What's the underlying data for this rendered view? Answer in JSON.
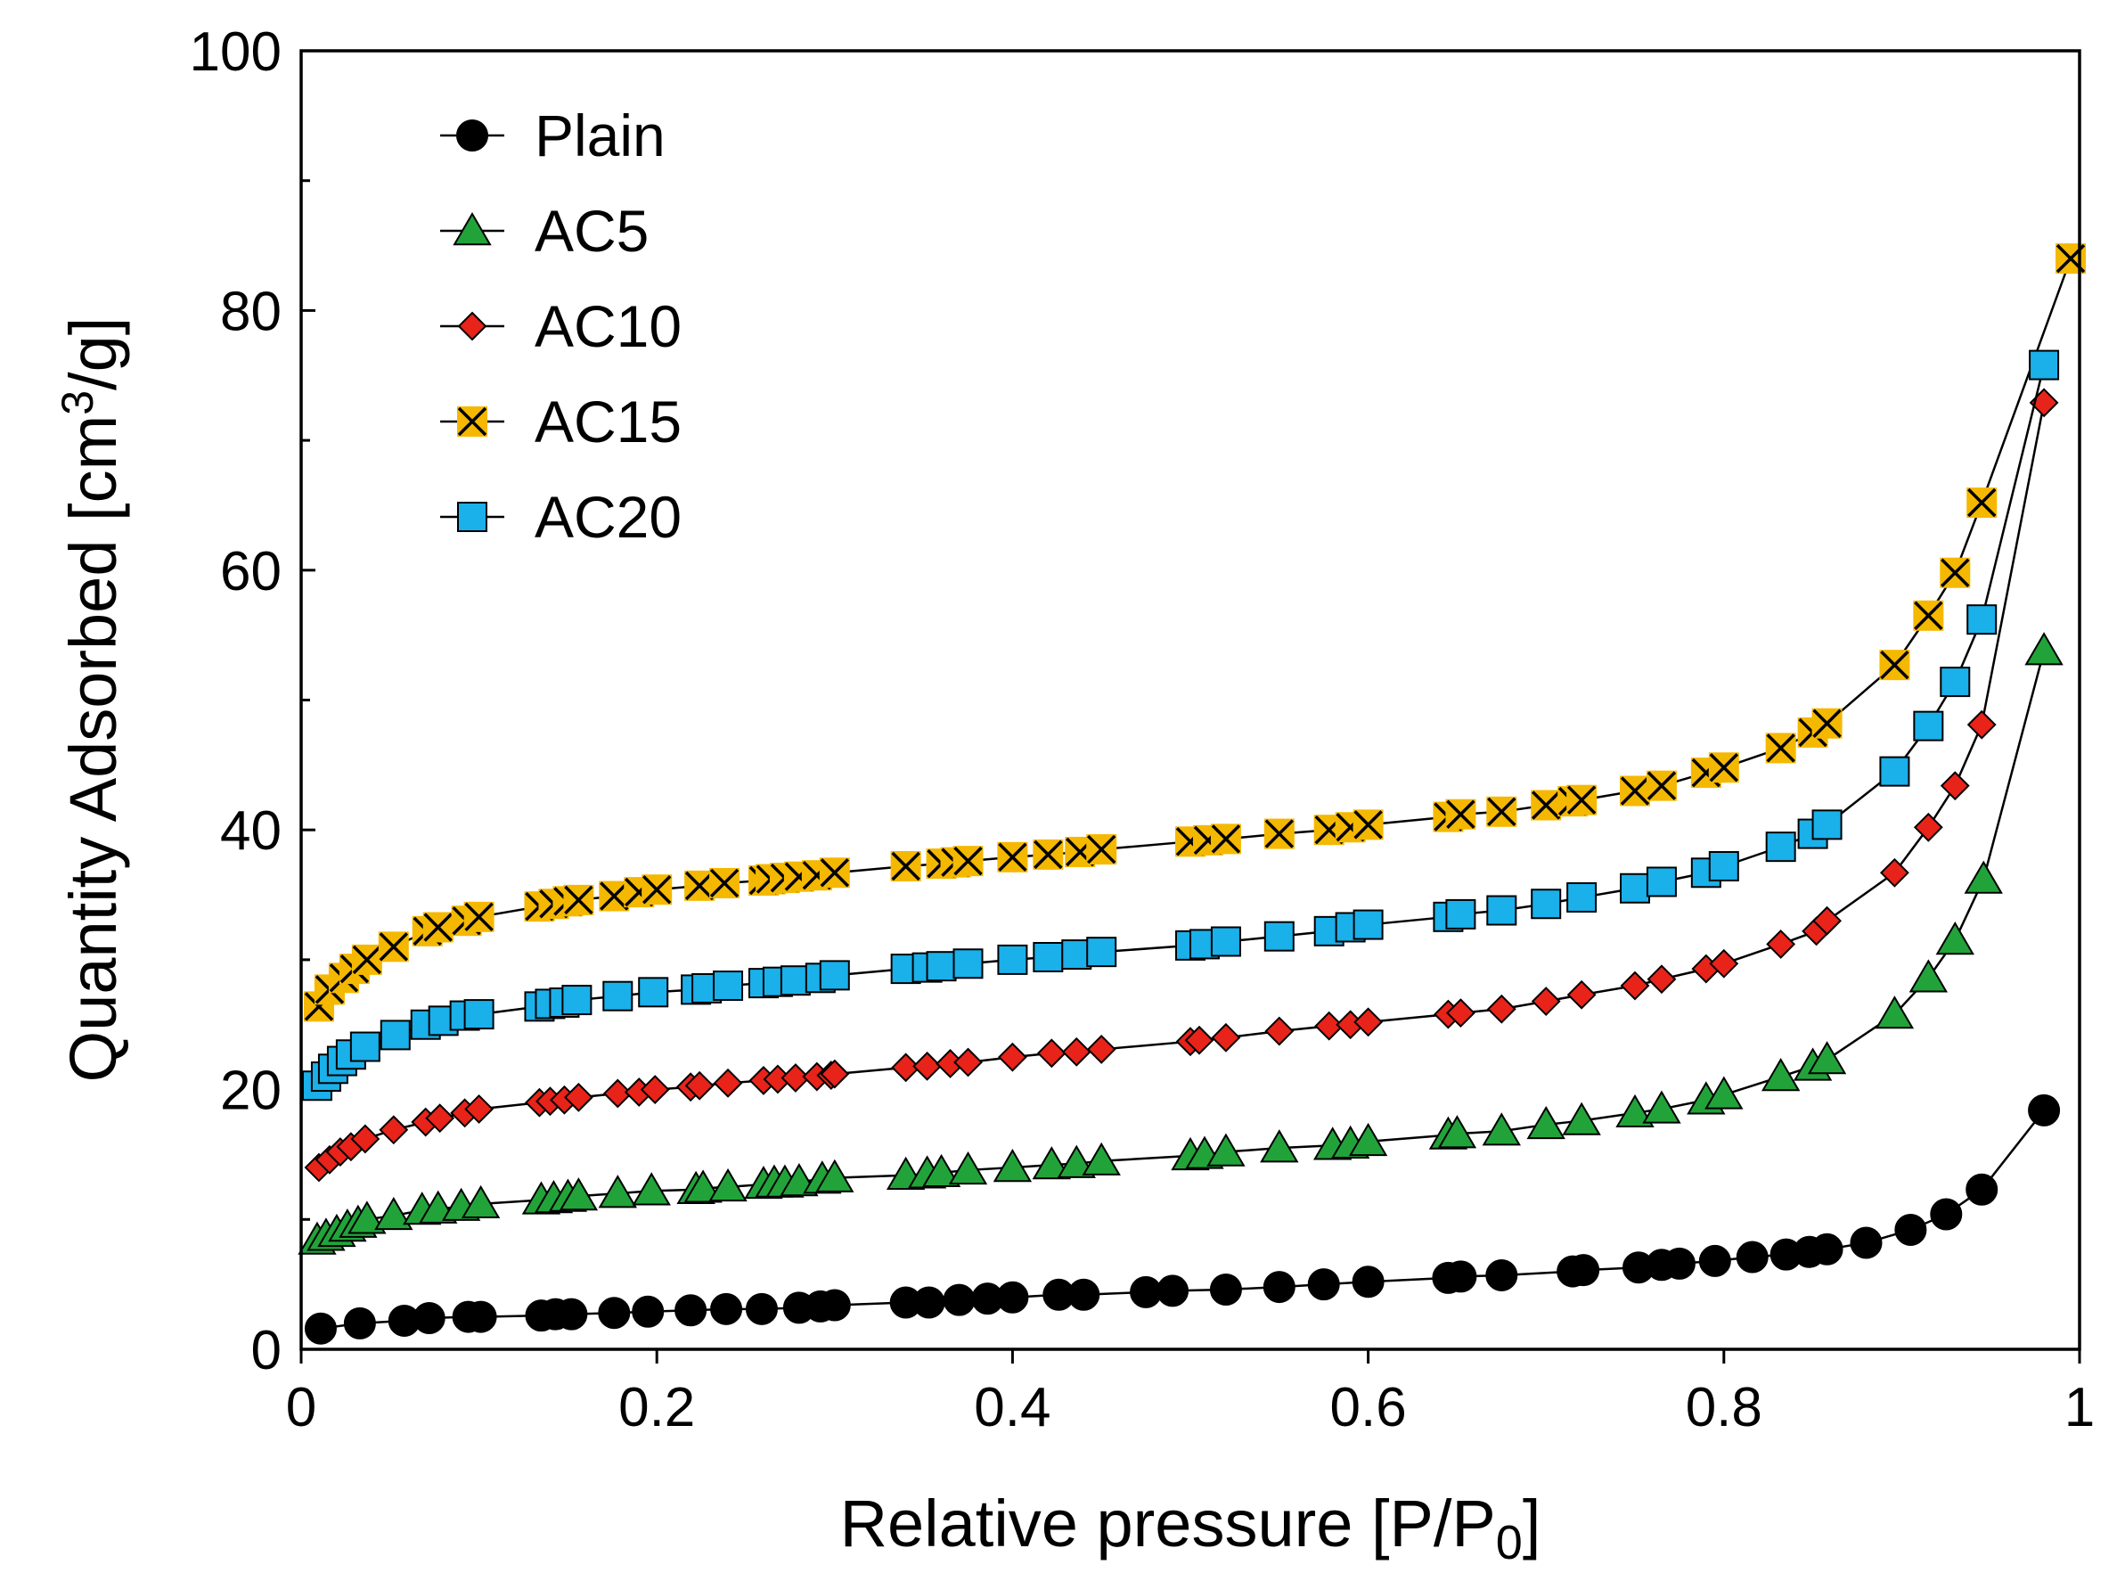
{
  "chart_data": {
    "type": "line",
    "title": "",
    "xlabel": "Relative pressure [P/P0]",
    "xlabel_parts": [
      "Relative pressure [P/P",
      "0",
      "]"
    ],
    "ylabel": "Quantity Adsorbed [cm3/g]",
    "ylabel_parts": [
      "Quantity Adsorbed [cm",
      "3",
      "/g]"
    ],
    "xlim": [
      0,
      1
    ],
    "ylim": [
      0,
      100
    ],
    "xticks": [
      0,
      0.2,
      0.4,
      0.6,
      0.8,
      1
    ],
    "xtick_labels": [
      "0",
      "0.2",
      "0.4",
      "0.6",
      "0.8",
      "1"
    ],
    "yticks": [
      0,
      20,
      40,
      60,
      80,
      100
    ],
    "ytick_labels": [
      "0",
      "20",
      "40",
      "60",
      "80",
      "100"
    ],
    "y_minor_step": 10,
    "grid": false,
    "legend_position": "top-left",
    "series": [
      {
        "name": "Plain",
        "marker": "circle",
        "color": "#000000",
        "x": [
          0.011,
          0.033,
          0.058,
          0.072,
          0.094,
          0.101,
          0.135,
          0.143,
          0.152,
          0.176,
          0.195,
          0.219,
          0.239,
          0.259,
          0.28,
          0.292,
          0.3,
          0.34,
          0.353,
          0.37,
          0.386,
          0.4,
          0.426,
          0.44,
          0.475,
          0.49,
          0.52,
          0.55,
          0.575,
          0.6,
          0.645,
          0.652,
          0.675,
          0.715,
          0.721,
          0.752,
          0.765,
          0.775,
          0.795,
          0.816,
          0.835,
          0.848,
          0.858,
          0.88,
          0.905,
          0.925,
          0.945,
          0.98
        ],
        "values": [
          1.6,
          2.0,
          2.2,
          2.4,
          2.5,
          2.5,
          2.6,
          2.7,
          2.7,
          2.8,
          2.9,
          3.0,
          3.1,
          3.1,
          3.2,
          3.3,
          3.4,
          3.6,
          3.6,
          3.8,
          3.9,
          4.0,
          4.2,
          4.2,
          4.4,
          4.5,
          4.6,
          4.8,
          5.0,
          5.2,
          5.5,
          5.6,
          5.7,
          6.0,
          6.1,
          6.3,
          6.5,
          6.6,
          6.8,
          7.1,
          7.3,
          7.5,
          7.7,
          8.2,
          9.2,
          10.4,
          12.3,
          18.4
        ]
      },
      {
        "name": "AC5",
        "marker": "triangle",
        "color": "#22A33A",
        "x": [
          0.009,
          0.014,
          0.02,
          0.026,
          0.032,
          0.037,
          0.052,
          0.068,
          0.077,
          0.09,
          0.101,
          0.135,
          0.142,
          0.15,
          0.156,
          0.178,
          0.197,
          0.222,
          0.226,
          0.24,
          0.26,
          0.266,
          0.272,
          0.28,
          0.293,
          0.3,
          0.34,
          0.352,
          0.36,
          0.375,
          0.4,
          0.422,
          0.436,
          0.45,
          0.5,
          0.508,
          0.52,
          0.55,
          0.58,
          0.59,
          0.6,
          0.645,
          0.65,
          0.675,
          0.7,
          0.72,
          0.75,
          0.765,
          0.79,
          0.8,
          0.832,
          0.85,
          0.858,
          0.896,
          0.915,
          0.93,
          0.946,
          0.98
        ],
        "values": [
          8.4,
          8.7,
          9.0,
          9.4,
          9.7,
          10.0,
          10.3,
          10.7,
          10.8,
          11.0,
          11.2,
          11.5,
          11.6,
          11.7,
          11.8,
          12.0,
          12.2,
          12.3,
          12.4,
          12.5,
          12.7,
          12.8,
          12.8,
          12.9,
          13.1,
          13.2,
          13.4,
          13.5,
          13.6,
          13.8,
          14.0,
          14.2,
          14.3,
          14.5,
          14.9,
          15.0,
          15.2,
          15.5,
          15.7,
          15.8,
          16.0,
          16.5,
          16.6,
          16.8,
          17.3,
          17.6,
          18.2,
          18.5,
          19.2,
          19.6,
          21.0,
          21.8,
          22.3,
          25.8,
          28.6,
          31.5,
          36.2,
          53.8
        ]
      },
      {
        "name": "AC10",
        "marker": "diamond",
        "color": "#E8231A",
        "x": [
          0.01,
          0.016,
          0.022,
          0.028,
          0.036,
          0.052,
          0.07,
          0.078,
          0.092,
          0.1,
          0.134,
          0.14,
          0.148,
          0.156,
          0.178,
          0.19,
          0.199,
          0.219,
          0.224,
          0.24,
          0.26,
          0.268,
          0.278,
          0.29,
          0.298,
          0.3,
          0.34,
          0.352,
          0.365,
          0.375,
          0.4,
          0.422,
          0.436,
          0.45,
          0.5,
          0.505,
          0.52,
          0.55,
          0.578,
          0.59,
          0.6,
          0.645,
          0.652,
          0.675,
          0.7,
          0.72,
          0.75,
          0.765,
          0.79,
          0.8,
          0.832,
          0.852,
          0.858,
          0.896,
          0.915,
          0.93,
          0.945,
          0.98
        ],
        "values": [
          14.0,
          14.6,
          15.2,
          15.6,
          16.2,
          16.9,
          17.5,
          17.8,
          18.2,
          18.5,
          19.0,
          19.1,
          19.2,
          19.4,
          19.7,
          19.8,
          20.0,
          20.2,
          20.3,
          20.5,
          20.7,
          20.8,
          20.9,
          21.0,
          21.1,
          21.2,
          21.7,
          21.8,
          22.0,
          22.1,
          22.5,
          22.8,
          22.9,
          23.1,
          23.7,
          23.8,
          24.0,
          24.5,
          24.9,
          25.0,
          25.2,
          25.8,
          25.9,
          26.2,
          26.8,
          27.3,
          28.0,
          28.5,
          29.3,
          29.7,
          31.2,
          32.2,
          33.0,
          36.7,
          40.2,
          43.4,
          48.1,
          72.9
        ]
      },
      {
        "name": "AC15",
        "marker": "x",
        "color": "#F5B800",
        "x": [
          0.01,
          0.016,
          0.024,
          0.03,
          0.037,
          0.052,
          0.071,
          0.077,
          0.093,
          0.1,
          0.134,
          0.142,
          0.15,
          0.156,
          0.176,
          0.19,
          0.2,
          0.224,
          0.238,
          0.26,
          0.264,
          0.272,
          0.28,
          0.29,
          0.3,
          0.34,
          0.36,
          0.368,
          0.375,
          0.4,
          0.42,
          0.438,
          0.45,
          0.5,
          0.51,
          0.52,
          0.55,
          0.578,
          0.59,
          0.6,
          0.645,
          0.652,
          0.675,
          0.7,
          0.715,
          0.72,
          0.75,
          0.765,
          0.79,
          0.8,
          0.832,
          0.85,
          0.858,
          0.896,
          0.915,
          0.93,
          0.945,
          0.995
        ],
        "values": [
          26.4,
          27.7,
          28.6,
          29.3,
          30.0,
          31.0,
          32.2,
          32.5,
          33.0,
          33.3,
          34.1,
          34.3,
          34.5,
          34.6,
          34.9,
          35.2,
          35.4,
          35.7,
          35.9,
          36.1,
          36.2,
          36.3,
          36.4,
          36.5,
          36.7,
          37.2,
          37.4,
          37.5,
          37.6,
          37.9,
          38.1,
          38.3,
          38.5,
          39.1,
          39.2,
          39.3,
          39.7,
          40.0,
          40.2,
          40.4,
          41.0,
          41.2,
          41.4,
          41.9,
          42.2,
          42.3,
          43.0,
          43.4,
          44.4,
          44.8,
          46.3,
          47.5,
          48.2,
          52.7,
          56.5,
          59.8,
          65.2,
          84.0
        ]
      },
      {
        "name": "AC20",
        "marker": "square",
        "color": "#1AB0EA",
        "x": [
          0.009,
          0.014,
          0.018,
          0.023,
          0.028,
          0.036,
          0.053,
          0.07,
          0.08,
          0.092,
          0.1,
          0.134,
          0.14,
          0.148,
          0.155,
          0.178,
          0.198,
          0.222,
          0.228,
          0.24,
          0.26,
          0.268,
          0.278,
          0.292,
          0.3,
          0.34,
          0.352,
          0.36,
          0.375,
          0.4,
          0.42,
          0.436,
          0.45,
          0.5,
          0.508,
          0.52,
          0.55,
          0.578,
          0.59,
          0.6,
          0.645,
          0.652,
          0.675,
          0.7,
          0.72,
          0.75,
          0.765,
          0.79,
          0.8,
          0.832,
          0.85,
          0.858,
          0.896,
          0.915,
          0.93,
          0.945,
          0.98
        ],
        "values": [
          20.3,
          21.0,
          21.6,
          22.2,
          22.7,
          23.3,
          24.2,
          25.0,
          25.3,
          25.7,
          25.8,
          26.4,
          26.6,
          26.7,
          26.9,
          27.2,
          27.5,
          27.7,
          27.8,
          28.0,
          28.2,
          28.3,
          28.4,
          28.6,
          28.8,
          29.3,
          29.4,
          29.5,
          29.7,
          30.0,
          30.2,
          30.4,
          30.6,
          31.1,
          31.2,
          31.4,
          31.8,
          32.2,
          32.5,
          32.7,
          33.3,
          33.5,
          33.8,
          34.3,
          34.8,
          35.5,
          36.0,
          36.7,
          37.2,
          38.7,
          39.7,
          40.4,
          44.5,
          48.0,
          51.4,
          56.2,
          75.8
        ]
      }
    ]
  }
}
